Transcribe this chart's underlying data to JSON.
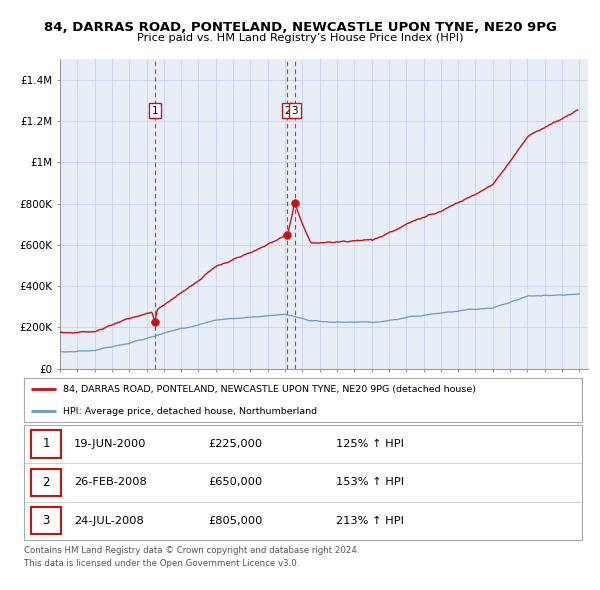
{
  "title": "84, DARRAS ROAD, PONTELAND, NEWCASTLE UPON TYNE, NE20 9PG",
  "subtitle": "Price paid vs. HM Land Registry’s House Price Index (HPI)",
  "property_label": "84, DARRAS ROAD, PONTELAND, NEWCASTLE UPON TYNE, NE20 9PG (detached house)",
  "hpi_label": "HPI: Average price, detached house, Northumberland",
  "property_color": "#cc1111",
  "hpi_color": "#6699cc",
  "vline_color": "#cc1111",
  "chart_bg": "#e8eef8",
  "ylim": [
    0,
    1500000
  ],
  "yticks": [
    0,
    200000,
    400000,
    600000,
    800000,
    1000000,
    1200000,
    1400000
  ],
  "ytick_labels": [
    "£0",
    "£200K",
    "£400K",
    "£600K",
    "£800K",
    "£1M",
    "£1.2M",
    "£1.4M"
  ],
  "xlim_start": 1995,
  "xlim_end": 2025.5,
  "sales": [
    {
      "num": 1,
      "date_label": "19-JUN-2000",
      "price": 225000,
      "pct": "125%",
      "direction": "↑",
      "x": 2000.47
    },
    {
      "num": 2,
      "date_label": "26-FEB-2008",
      "price": 650000,
      "pct": "153%",
      "direction": "↑",
      "x": 2008.14
    },
    {
      "num": 3,
      "date_label": "24-JUL-2008",
      "price": 805000,
      "pct": "213%",
      "direction": "↑",
      "x": 2008.56
    }
  ],
  "footer_line1": "Contains HM Land Registry data © Crown copyright and database right 2024.",
  "footer_line2": "This data is licensed under the Open Government Licence v3.0.",
  "background_color": "#ffffff",
  "grid_color": "#c8d4e8"
}
